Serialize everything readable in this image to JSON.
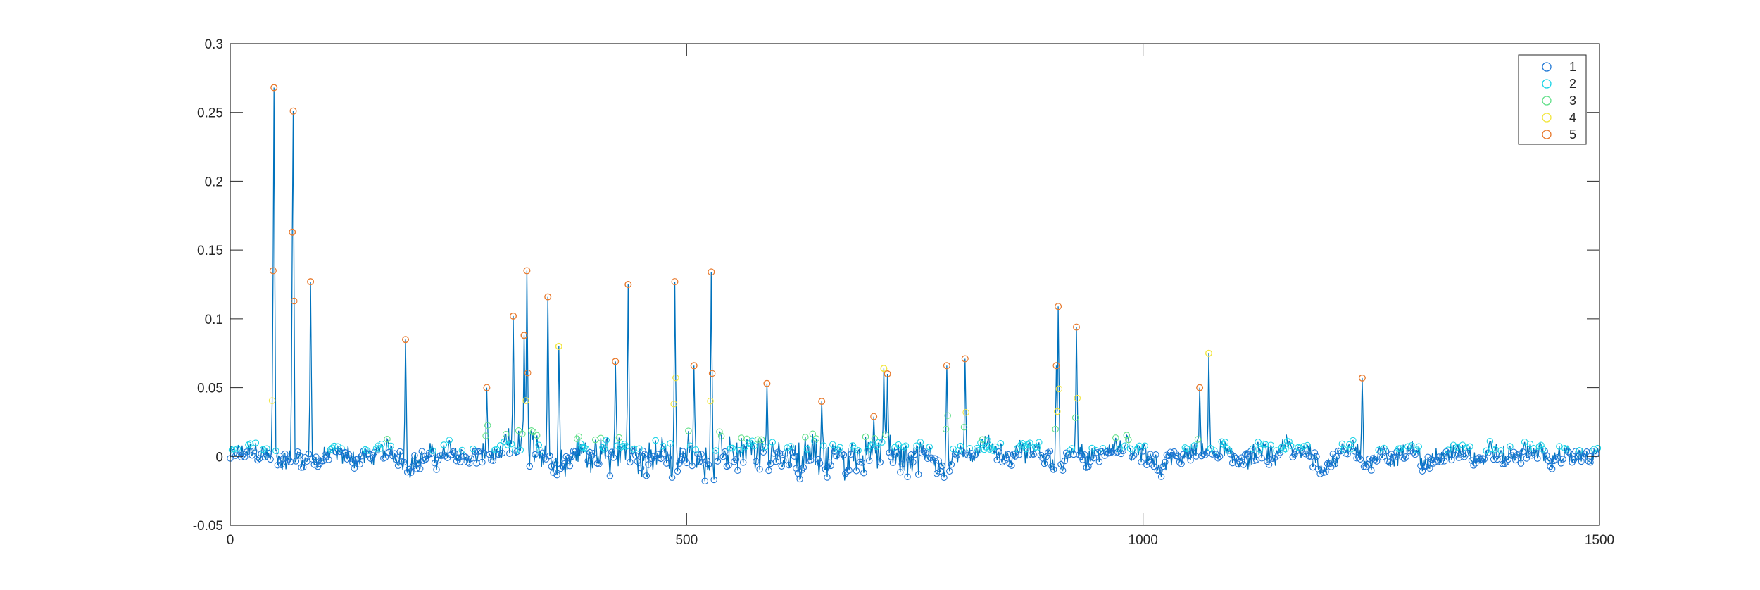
{
  "chart_data": {
    "type": "scatter",
    "line_connected": true,
    "line_color": "#0072BD",
    "marker": "circle",
    "title": "",
    "xlabel": "",
    "ylabel": "",
    "xlim": [
      0,
      1500
    ],
    "ylim": [
      -0.05,
      0.3
    ],
    "xticks": [
      0,
      500,
      1000,
      1500
    ],
    "xtick_labels": [
      "0",
      "500",
      "1000",
      "1500"
    ],
    "yticks": [
      -0.05,
      0,
      0.05,
      0.1,
      0.15,
      0.2,
      0.25,
      0.3
    ],
    "ytick_labels": [
      "-0.05",
      "0",
      "0.05",
      "0.1",
      "0.15",
      "0.2",
      "0.25",
      "0.3"
    ],
    "grid": false,
    "legend_position": "top-right",
    "series": [
      {
        "name": "1",
        "color": "#1f77d4"
      },
      {
        "name": "2",
        "color": "#19d3e6"
      },
      {
        "name": "3",
        "color": "#63e08a"
      },
      {
        "name": "4",
        "color": "#f2e640"
      },
      {
        "name": "5",
        "color": "#e87a2e"
      }
    ],
    "peaks": [
      {
        "x": 48,
        "y": 0.268,
        "class": 5
      },
      {
        "x": 47,
        "y": 0.135,
        "class": 5
      },
      {
        "x": 69,
        "y": 0.251,
        "class": 5
      },
      {
        "x": 68,
        "y": 0.163,
        "class": 5
      },
      {
        "x": 88,
        "y": 0.127,
        "class": 5
      },
      {
        "x": 192,
        "y": 0.085,
        "class": 5
      },
      {
        "x": 281,
        "y": 0.05,
        "class": 5
      },
      {
        "x": 310,
        "y": 0.102,
        "class": 5
      },
      {
        "x": 325,
        "y": 0.135,
        "class": 5
      },
      {
        "x": 322,
        "y": 0.088,
        "class": 5
      },
      {
        "x": 348,
        "y": 0.116,
        "class": 5
      },
      {
        "x": 360,
        "y": 0.08,
        "class": 4
      },
      {
        "x": 422,
        "y": 0.069,
        "class": 5
      },
      {
        "x": 436,
        "y": 0.125,
        "class": 5
      },
      {
        "x": 487,
        "y": 0.127,
        "class": 5
      },
      {
        "x": 508,
        "y": 0.066,
        "class": 5
      },
      {
        "x": 527,
        "y": 0.134,
        "class": 5
      },
      {
        "x": 588,
        "y": 0.053,
        "class": 5
      },
      {
        "x": 648,
        "y": 0.04,
        "class": 5
      },
      {
        "x": 705,
        "y": 0.029,
        "class": 5
      },
      {
        "x": 716,
        "y": 0.064,
        "class": 4
      },
      {
        "x": 720,
        "y": 0.06,
        "class": 5
      },
      {
        "x": 785,
        "y": 0.066,
        "class": 5
      },
      {
        "x": 805,
        "y": 0.071,
        "class": 5
      },
      {
        "x": 907,
        "y": 0.109,
        "class": 5
      },
      {
        "x": 905,
        "y": 0.066,
        "class": 5
      },
      {
        "x": 927,
        "y": 0.094,
        "class": 5
      },
      {
        "x": 1062,
        "y": 0.05,
        "class": 5
      },
      {
        "x": 1072,
        "y": 0.075,
        "class": 4
      },
      {
        "x": 1240,
        "y": 0.057,
        "class": 5
      }
    ]
  }
}
